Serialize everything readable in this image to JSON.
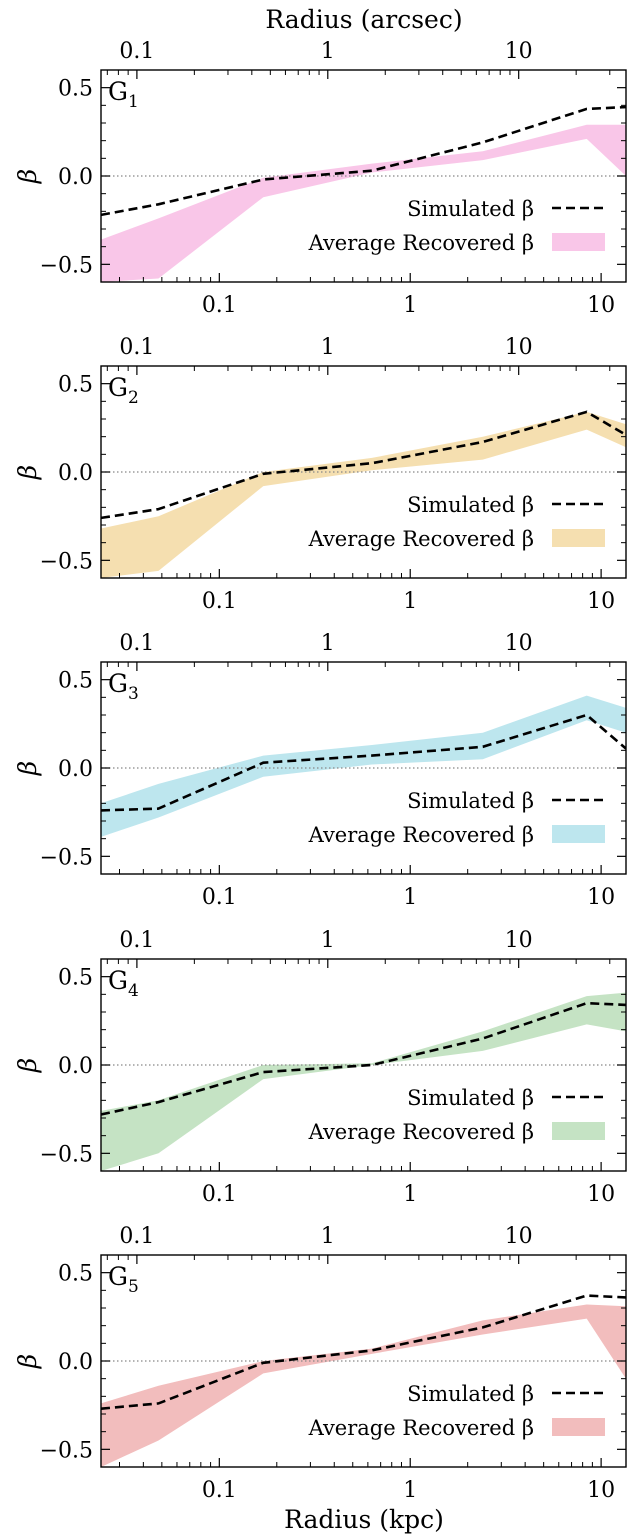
{
  "figure": {
    "top_axis_label": "Radius (arcsec)",
    "bottom_axis_label": "Radius (kpc)",
    "y_axis_label": "β"
  },
  "chart_data": [
    {
      "type": "line",
      "panel_label": "G",
      "panel_subscript": "1",
      "xlabel": "",
      "ylabel": "β",
      "x_scale": "log",
      "xlim": [
        0.024,
        13.5
      ],
      "ylim": [
        -0.6,
        0.6
      ],
      "x_ticks": [
        0.1,
        1,
        10
      ],
      "x_tick_labels": [
        "0.1",
        "1",
        "10"
      ],
      "top_x_ticks": [
        0.037,
        0.37,
        3.7
      ],
      "top_x_tick_labels": [
        "0.1",
        "1",
        "10"
      ],
      "y_ticks": [
        -0.5,
        0.0,
        0.5
      ],
      "y_tick_labels": [
        "−0.5",
        "0.0",
        "0.5"
      ],
      "reference_line": 0.0,
      "legend_location": "lower-right",
      "band_color": "#F9C6E8",
      "series": [
        {
          "name": "Simulated β",
          "style": "dashed",
          "color": "#000000",
          "x": [
            0.024,
            0.048,
            0.17,
            0.63,
            2.4,
            8.4,
            13.5
          ],
          "y": [
            -0.22,
            -0.16,
            -0.02,
            0.03,
            0.19,
            0.38,
            0.39
          ]
        },
        {
          "name": "Average Recovered β",
          "style": "band",
          "x": [
            0.024,
            0.048,
            0.17,
            0.63,
            2.4,
            8.4,
            13.5
          ],
          "y_low": [
            -0.6,
            -0.58,
            -0.12,
            0.02,
            0.09,
            0.21,
            0.0
          ],
          "y_high": [
            -0.36,
            -0.24,
            -0.01,
            0.07,
            0.14,
            0.29,
            0.29
          ]
        }
      ]
    },
    {
      "type": "line",
      "panel_label": "G",
      "panel_subscript": "2",
      "xlabel": "",
      "ylabel": "β",
      "x_scale": "log",
      "xlim": [
        0.024,
        13.5
      ],
      "ylim": [
        -0.6,
        0.6
      ],
      "x_ticks": [
        0.1,
        1,
        10
      ],
      "x_tick_labels": [
        "0.1",
        "1",
        "10"
      ],
      "top_x_ticks": [
        0.037,
        0.37,
        3.7
      ],
      "top_x_tick_labels": [
        "0.1",
        "1",
        "10"
      ],
      "y_ticks": [
        -0.5,
        0.0,
        0.5
      ],
      "y_tick_labels": [
        "−0.5",
        "0.0",
        "0.5"
      ],
      "reference_line": 0.0,
      "legend_location": "lower-right",
      "band_color": "#F5DFB0",
      "series": [
        {
          "name": "Simulated β",
          "style": "dashed",
          "color": "#000000",
          "x": [
            0.024,
            0.048,
            0.17,
            0.63,
            2.4,
            8.4,
            13.5
          ],
          "y": [
            -0.26,
            -0.21,
            -0.01,
            0.05,
            0.17,
            0.34,
            0.21
          ]
        },
        {
          "name": "Average Recovered β",
          "style": "band",
          "x": [
            0.024,
            0.048,
            0.17,
            0.63,
            2.4,
            8.4,
            13.5
          ],
          "y_low": [
            -0.6,
            -0.56,
            -0.08,
            0.01,
            0.07,
            0.24,
            0.14
          ],
          "y_high": [
            -0.32,
            -0.25,
            0.0,
            0.08,
            0.2,
            0.34,
            0.27
          ]
        }
      ]
    },
    {
      "type": "line",
      "panel_label": "G",
      "panel_subscript": "3",
      "xlabel": "",
      "ylabel": "β",
      "x_scale": "log",
      "xlim": [
        0.024,
        13.5
      ],
      "ylim": [
        -0.6,
        0.6
      ],
      "x_ticks": [
        0.1,
        1,
        10
      ],
      "x_tick_labels": [
        "0.1",
        "1",
        "10"
      ],
      "top_x_ticks": [
        0.037,
        0.37,
        3.7
      ],
      "top_x_tick_labels": [
        "0.1",
        "1",
        "10"
      ],
      "y_ticks": [
        -0.5,
        0.0,
        0.5
      ],
      "y_tick_labels": [
        "−0.5",
        "0.0",
        "0.5"
      ],
      "reference_line": 0.0,
      "legend_location": "lower-right",
      "band_color": "#BDE6EE",
      "series": [
        {
          "name": "Simulated β",
          "style": "dashed",
          "color": "#000000",
          "x": [
            0.024,
            0.048,
            0.17,
            0.63,
            2.4,
            8.4,
            13.5
          ],
          "y": [
            -0.24,
            -0.23,
            0.03,
            0.07,
            0.12,
            0.3,
            0.11
          ]
        },
        {
          "name": "Average Recovered β",
          "style": "band",
          "x": [
            0.024,
            0.048,
            0.17,
            0.63,
            2.4,
            8.4,
            13.5
          ],
          "y_low": [
            -0.39,
            -0.28,
            -0.05,
            0.02,
            0.05,
            0.27,
            0.2
          ],
          "y_high": [
            -0.2,
            -0.09,
            0.07,
            0.13,
            0.2,
            0.41,
            0.34
          ]
        }
      ]
    },
    {
      "type": "line",
      "panel_label": "G",
      "panel_subscript": "4",
      "xlabel": "",
      "ylabel": "β",
      "x_scale": "log",
      "xlim": [
        0.024,
        13.5
      ],
      "ylim": [
        -0.6,
        0.6
      ],
      "x_ticks": [
        0.1,
        1,
        10
      ],
      "x_tick_labels": [
        "0.1",
        "1",
        "10"
      ],
      "top_x_ticks": [
        0.037,
        0.37,
        3.7
      ],
      "top_x_tick_labels": [
        "0.1",
        "1",
        "10"
      ],
      "y_ticks": [
        -0.5,
        0.0,
        0.5
      ],
      "y_tick_labels": [
        "−0.5",
        "0.0",
        "0.5"
      ],
      "reference_line": 0.0,
      "legend_location": "lower-right",
      "band_color": "#C5E3C4",
      "series": [
        {
          "name": "Simulated β",
          "style": "dashed",
          "color": "#000000",
          "x": [
            0.024,
            0.048,
            0.17,
            0.63,
            2.4,
            8.4,
            13.5
          ],
          "y": [
            -0.28,
            -0.21,
            -0.04,
            0.0,
            0.15,
            0.35,
            0.34
          ]
        },
        {
          "name": "Average Recovered β",
          "style": "band",
          "x": [
            0.024,
            0.048,
            0.17,
            0.63,
            2.4,
            8.4,
            13.5
          ],
          "y_low": [
            -0.6,
            -0.5,
            -0.08,
            0.0,
            0.08,
            0.23,
            0.19
          ],
          "y_high": [
            -0.26,
            -0.2,
            0.0,
            0.01,
            0.19,
            0.39,
            0.41
          ]
        }
      ]
    },
    {
      "type": "line",
      "panel_label": "G",
      "panel_subscript": "5",
      "xlabel": "Radius (kpc)",
      "ylabel": "β",
      "x_scale": "log",
      "xlim": [
        0.024,
        13.5
      ],
      "ylim": [
        -0.6,
        0.6
      ],
      "x_ticks": [
        0.1,
        1,
        10
      ],
      "x_tick_labels": [
        "0.1",
        "1",
        "10"
      ],
      "top_x_ticks": [
        0.037,
        0.37,
        3.7
      ],
      "top_x_tick_labels": [
        "0.1",
        "1",
        "10"
      ],
      "y_ticks": [
        -0.5,
        0.0,
        0.5
      ],
      "y_tick_labels": [
        "−0.5",
        "0.0",
        "0.5"
      ],
      "reference_line": 0.0,
      "legend_location": "lower-right",
      "band_color": "#F2BDBD",
      "series": [
        {
          "name": "Simulated β",
          "style": "dashed",
          "color": "#000000",
          "x": [
            0.024,
            0.048,
            0.17,
            0.63,
            2.4,
            8.4,
            13.5
          ],
          "y": [
            -0.27,
            -0.24,
            -0.01,
            0.06,
            0.19,
            0.37,
            0.36
          ]
        },
        {
          "name": "Average Recovered β",
          "style": "band",
          "x": [
            0.024,
            0.048,
            0.17,
            0.63,
            2.4,
            8.4,
            13.5
          ],
          "y_low": [
            -0.6,
            -0.45,
            -0.07,
            0.04,
            0.15,
            0.24,
            -0.1
          ],
          "y_high": [
            -0.24,
            -0.14,
            0.0,
            0.07,
            0.23,
            0.32,
            0.31
          ]
        }
      ]
    }
  ]
}
